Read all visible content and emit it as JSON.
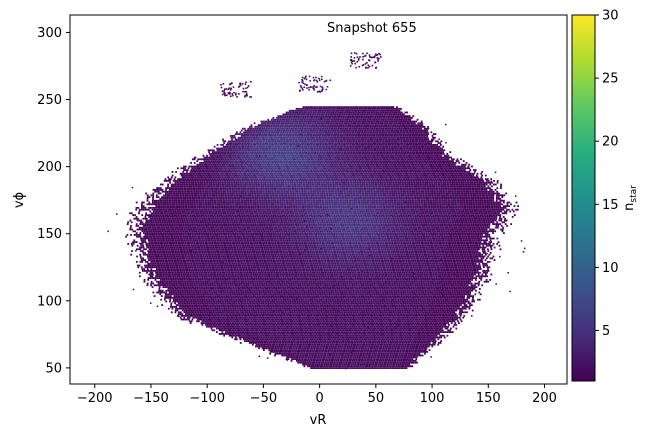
{
  "chart_data": {
    "type": "heatmap",
    "subtype": "2d-histogram (hexbin) of star velocities",
    "annotation": "Snapshot 655",
    "xlabel": "vR",
    "ylabel": "vϕ",
    "xlim": [
      -222,
      220
    ],
    "ylim": [
      38,
      313
    ],
    "x_ticks": [
      -200,
      -150,
      -100,
      -50,
      0,
      50,
      100,
      150,
      200
    ],
    "y_ticks": [
      50,
      100,
      150,
      200,
      250,
      300
    ],
    "colorbar": {
      "label": "n_star",
      "label_main": "n",
      "label_sub": "star",
      "range": [
        1,
        30
      ],
      "ticks": [
        5,
        10,
        15,
        20,
        25,
        30
      ],
      "colormap": "viridis"
    },
    "distribution": {
      "main_body": {
        "vR_range": [
          -175,
          180
        ],
        "vphi_range": [
          50,
          245
        ],
        "typical_count": [
          1,
          5
        ],
        "peak_count": 6
      },
      "density_peaks": [
        {
          "vR": -35,
          "vphi": 210,
          "count": 6
        },
        {
          "vR": 25,
          "vphi": 160,
          "count": 5
        }
      ],
      "detached_clumps": [
        {
          "vR": -5,
          "vphi": 262,
          "count": 2
        },
        {
          "vR": 40,
          "vphi": 280,
          "count": 1
        },
        {
          "vR": -75,
          "vphi": 258,
          "count": 1
        }
      ]
    },
    "grid": false,
    "legend": "none"
  },
  "colors": {
    "background": "#ffffff",
    "axes": "#000000",
    "low_density": "#440154",
    "mid_density": "#3b528b",
    "high_density": "#fde725"
  }
}
